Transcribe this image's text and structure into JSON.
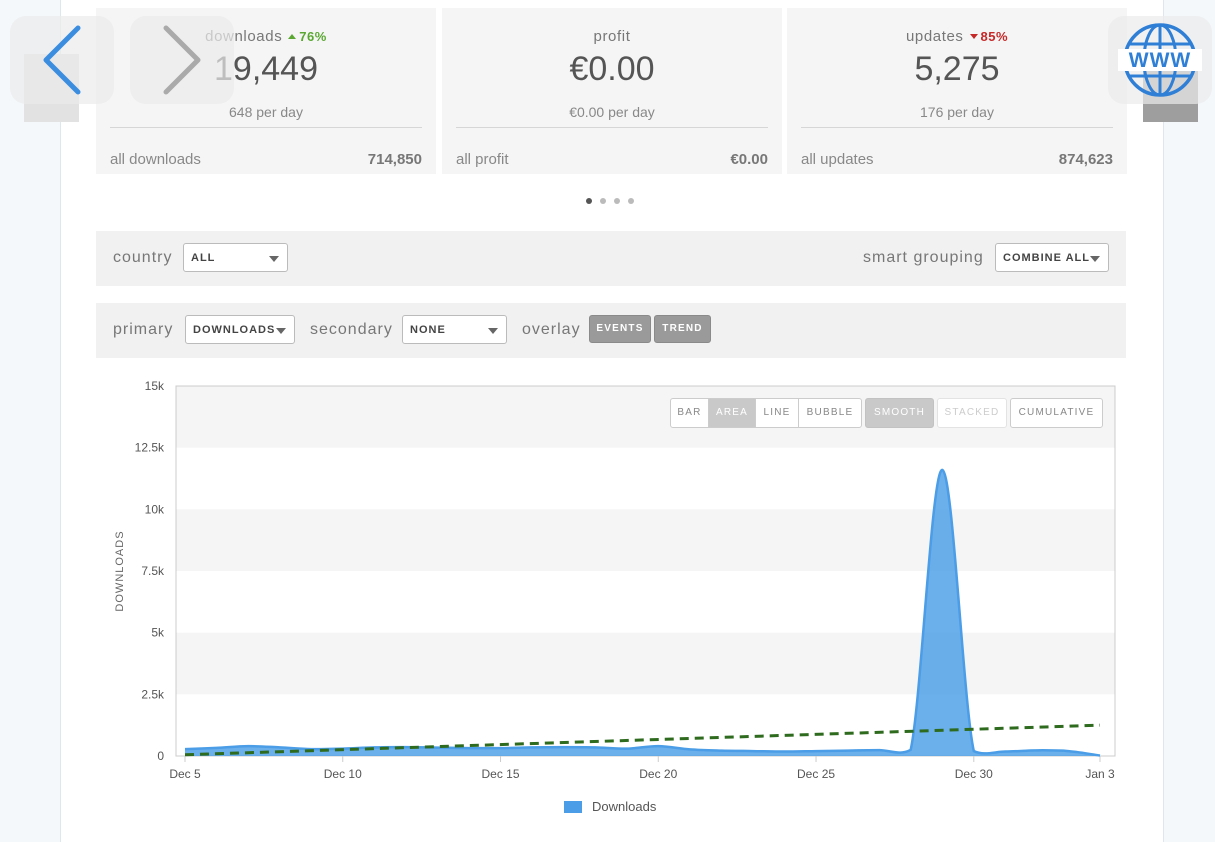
{
  "stats": [
    {
      "label": "downloads",
      "delta": "76%",
      "delta_dir": "up",
      "value": "19,449",
      "rate": "648 per day",
      "total_label": "all downloads",
      "total_value": "714,850"
    },
    {
      "label": "profit",
      "delta": "",
      "delta_dir": "none",
      "value": "€0.00",
      "rate": "€0.00 per day",
      "total_label": "all profit",
      "total_value": "€0.00"
    },
    {
      "label": "updates",
      "delta": "85%",
      "delta_dir": "down",
      "value": "5,275",
      "rate": "176 per day",
      "total_label": "all updates",
      "total_value": "874,623"
    }
  ],
  "pager": {
    "count": 4,
    "active": 0
  },
  "filters": {
    "country_label": "country",
    "country_value": "ALL",
    "grouping_label": "smart grouping",
    "grouping_value": "COMBINE ALL",
    "primary_label": "primary",
    "primary_value": "DOWNLOADS",
    "secondary_label": "secondary",
    "secondary_value": "NONE",
    "overlay_label": "overlay",
    "overlay_events": "EVENTS",
    "overlay_trend": "TREND"
  },
  "chart_controls": {
    "types": [
      "BAR",
      "AREA",
      "LINE",
      "BUBBLE"
    ],
    "active_type": "AREA",
    "smooth": "SMOOTH",
    "stacked": "STACKED",
    "cumulative": "CUMULATIVE"
  },
  "chart_data": {
    "type": "area",
    "ylabel": "DOWNLOADS",
    "ylim": [
      0,
      15000
    ],
    "yticks": [
      0,
      2500,
      5000,
      7500,
      10000,
      12500,
      15000
    ],
    "ytick_labels": [
      "0",
      "2.5k",
      "5k",
      "7.5k",
      "10k",
      "12.5k",
      "15k"
    ],
    "xtick_labels": [
      "Dec 5",
      "Dec 10",
      "Dec 15",
      "Dec 20",
      "Dec 25",
      "Dec 30",
      "Jan 3"
    ],
    "xtick_index": [
      0,
      5,
      10,
      15,
      20,
      25,
      29
    ],
    "x": [
      "Dec 5",
      "Dec 6",
      "Dec 7",
      "Dec 8",
      "Dec 9",
      "Dec 10",
      "Dec 11",
      "Dec 12",
      "Dec 13",
      "Dec 14",
      "Dec 15",
      "Dec 16",
      "Dec 17",
      "Dec 18",
      "Dec 19",
      "Dec 20",
      "Dec 21",
      "Dec 22",
      "Dec 23",
      "Dec 24",
      "Dec 25",
      "Dec 26",
      "Dec 27",
      "Dec 28",
      "Dec 29",
      "Dec 30",
      "Dec 31",
      "Jan 1",
      "Jan 2",
      "Jan 3"
    ],
    "series": [
      {
        "name": "Downloads",
        "color": "#4a9de6",
        "values": [
          280,
          330,
          400,
          350,
          280,
          300,
          350,
          360,
          340,
          320,
          320,
          350,
          360,
          350,
          300,
          400,
          270,
          220,
          200,
          180,
          200,
          220,
          240,
          250,
          11600,
          200,
          180,
          230,
          200,
          20
        ]
      }
    ],
    "trend": {
      "color": "#2e6b1e",
      "style": "dashed",
      "start": 50,
      "end": 1250
    },
    "grid": "alternating horizontal bands",
    "legend": "bottom-center"
  }
}
